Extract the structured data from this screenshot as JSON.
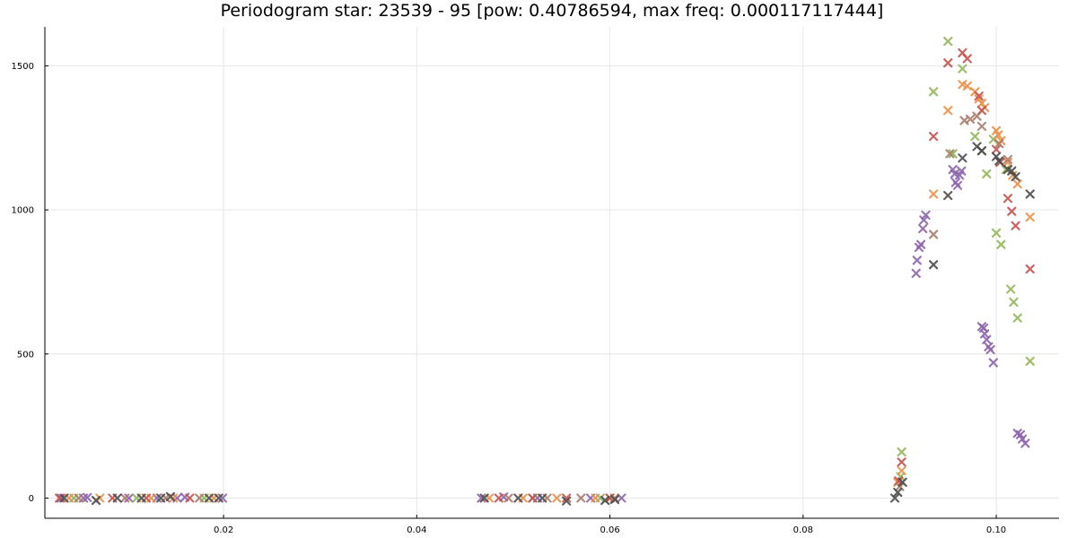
{
  "chart_data": {
    "type": "scatter",
    "title": "Periodogram star: 23539 - 95 [pow: 0.40786594, max freq: 0.000117117444]",
    "xlabel": "",
    "ylabel": "",
    "xlim": [
      0.0015,
      0.1065
    ],
    "ylim": [
      -70,
      1635
    ],
    "xticks": [
      {
        "value": 0.02,
        "label": "0.02"
      },
      {
        "value": 0.04,
        "label": "0.04"
      },
      {
        "value": 0.06,
        "label": "0.06"
      },
      {
        "value": 0.08,
        "label": "0.08"
      },
      {
        "value": 0.1,
        "label": "0.10"
      }
    ],
    "yticks": [
      {
        "value": 0,
        "label": "0"
      },
      {
        "value": 500,
        "label": "500"
      },
      {
        "value": 1000,
        "label": "1000"
      },
      {
        "value": 1500,
        "label": "1500"
      }
    ],
    "grid": true,
    "legend": "none",
    "marker": "x",
    "series": [
      {
        "color": "#8c63a8",
        "points": [
          [
            0.0032,
            0
          ],
          [
            0.0055,
            0
          ],
          [
            0.0059,
            2
          ],
          [
            0.0102,
            0
          ],
          [
            0.0131,
            0
          ],
          [
            0.0152,
            0
          ],
          [
            0.016,
            3
          ],
          [
            0.0199,
            0
          ],
          [
            0.0467,
            0
          ],
          [
            0.049,
            4
          ],
          [
            0.0525,
            0
          ],
          [
            0.058,
            0
          ],
          [
            0.0612,
            0
          ],
          [
            0.0917,
            780
          ],
          [
            0.0918,
            825
          ],
          [
            0.092,
            870
          ],
          [
            0.0922,
            880
          ],
          [
            0.0924,
            935
          ],
          [
            0.0925,
            965
          ],
          [
            0.0927,
            982
          ],
          [
            0.0955,
            1140
          ],
          [
            0.0957,
            1125
          ],
          [
            0.0958,
            1095
          ],
          [
            0.096,
            1085
          ],
          [
            0.0962,
            1120
          ],
          [
            0.0964,
            1135
          ],
          [
            0.0985,
            595
          ],
          [
            0.0987,
            590
          ],
          [
            0.0988,
            570
          ],
          [
            0.099,
            550
          ],
          [
            0.0992,
            525
          ],
          [
            0.0994,
            515
          ],
          [
            0.0997,
            470
          ],
          [
            0.1022,
            225
          ],
          [
            0.1025,
            220
          ],
          [
            0.1027,
            205
          ],
          [
            0.103,
            190
          ]
        ]
      },
      {
        "color": "#91b55a",
        "points": [
          [
            0.0045,
            0
          ],
          [
            0.011,
            0
          ],
          [
            0.018,
            0
          ],
          [
            0.052,
            0
          ],
          [
            0.059,
            0
          ],
          [
            0.0902,
            160
          ],
          [
            0.0901,
            75
          ],
          [
            0.0935,
            1410
          ],
          [
            0.095,
            1585
          ],
          [
            0.0955,
            1195
          ],
          [
            0.0965,
            1490
          ],
          [
            0.0978,
            1255
          ],
          [
            0.0985,
            1205
          ],
          [
            0.099,
            1125
          ],
          [
            0.0997,
            1245
          ],
          [
            0.1,
            920
          ],
          [
            0.1005,
            880
          ],
          [
            0.101,
            1140
          ],
          [
            0.1015,
            725
          ],
          [
            0.1018,
            680
          ],
          [
            0.1022,
            625
          ],
          [
            0.1035,
            475
          ]
        ]
      },
      {
        "color": "#e8904a",
        "points": [
          [
            0.004,
            0
          ],
          [
            0.0072,
            0
          ],
          [
            0.0125,
            0
          ],
          [
            0.0148,
            0
          ],
          [
            0.019,
            0
          ],
          [
            0.0475,
            0
          ],
          [
            0.051,
            0
          ],
          [
            0.0545,
            0
          ],
          [
            0.0585,
            0
          ],
          [
            0.06,
            0
          ],
          [
            0.0898,
            55
          ],
          [
            0.0902,
            95
          ],
          [
            0.0935,
            1055
          ],
          [
            0.095,
            1345
          ],
          [
            0.0965,
            1435
          ],
          [
            0.097,
            1430
          ],
          [
            0.0978,
            1410
          ],
          [
            0.0982,
            1385
          ],
          [
            0.0985,
            1370
          ],
          [
            0.0988,
            1355
          ],
          [
            0.1,
            1275
          ],
          [
            0.1002,
            1260
          ],
          [
            0.1005,
            1240
          ],
          [
            0.1012,
            1165
          ],
          [
            0.1017,
            1120
          ],
          [
            0.1022,
            1090
          ],
          [
            0.1035,
            975
          ]
        ]
      },
      {
        "color": "#c0504d",
        "points": [
          [
            0.003,
            0
          ],
          [
            0.0085,
            0
          ],
          [
            0.012,
            0
          ],
          [
            0.0165,
            0
          ],
          [
            0.0485,
            0
          ],
          [
            0.052,
            0
          ],
          [
            0.0555,
            0
          ],
          [
            0.06,
            0
          ],
          [
            0.0899,
            60
          ],
          [
            0.0902,
            125
          ],
          [
            0.0935,
            1255
          ],
          [
            0.095,
            1510
          ],
          [
            0.0965,
            1545
          ],
          [
            0.097,
            1525
          ],
          [
            0.0982,
            1395
          ],
          [
            0.0985,
            1345
          ],
          [
            0.1,
            1210
          ],
          [
            0.1004,
            1165
          ],
          [
            0.1012,
            1040
          ],
          [
            0.1016,
            995
          ],
          [
            0.102,
            945
          ],
          [
            0.1035,
            795
          ]
        ]
      },
      {
        "color": "#a87a68",
        "points": [
          [
            0.005,
            0
          ],
          [
            0.0098,
            0
          ],
          [
            0.014,
            0
          ],
          [
            0.0175,
            0
          ],
          [
            0.0495,
            0
          ],
          [
            0.0535,
            0
          ],
          [
            0.057,
            0
          ],
          [
            0.0605,
            0
          ],
          [
            0.09,
            40
          ],
          [
            0.0935,
            915
          ],
          [
            0.0952,
            1195
          ],
          [
            0.0967,
            1310
          ],
          [
            0.0973,
            1315
          ],
          [
            0.098,
            1325
          ],
          [
            0.0985,
            1290
          ],
          [
            0.1003,
            1230
          ],
          [
            0.1012,
            1175
          ]
        ]
      },
      {
        "color": "#4a4a4a",
        "points": [
          [
            0.0035,
            0
          ],
          [
            0.0068,
            -8
          ],
          [
            0.009,
            0
          ],
          [
            0.0115,
            0
          ],
          [
            0.0135,
            0
          ],
          [
            0.0145,
            5
          ],
          [
            0.0185,
            0
          ],
          [
            0.0195,
            0
          ],
          [
            0.047,
            0
          ],
          [
            0.0505,
            0
          ],
          [
            0.053,
            0
          ],
          [
            0.0555,
            -10
          ],
          [
            0.0595,
            -8
          ],
          [
            0.0605,
            -5
          ],
          [
            0.0895,
            0
          ],
          [
            0.0898,
            20
          ],
          [
            0.0903,
            55
          ],
          [
            0.0935,
            810
          ],
          [
            0.095,
            1050
          ],
          [
            0.0965,
            1180
          ],
          [
            0.098,
            1220
          ],
          [
            0.0985,
            1205
          ],
          [
            0.1,
            1185
          ],
          [
            0.1003,
            1170
          ],
          [
            0.1012,
            1140
          ],
          [
            0.1016,
            1135
          ],
          [
            0.102,
            1115
          ],
          [
            0.1035,
            1055
          ]
        ]
      }
    ]
  }
}
